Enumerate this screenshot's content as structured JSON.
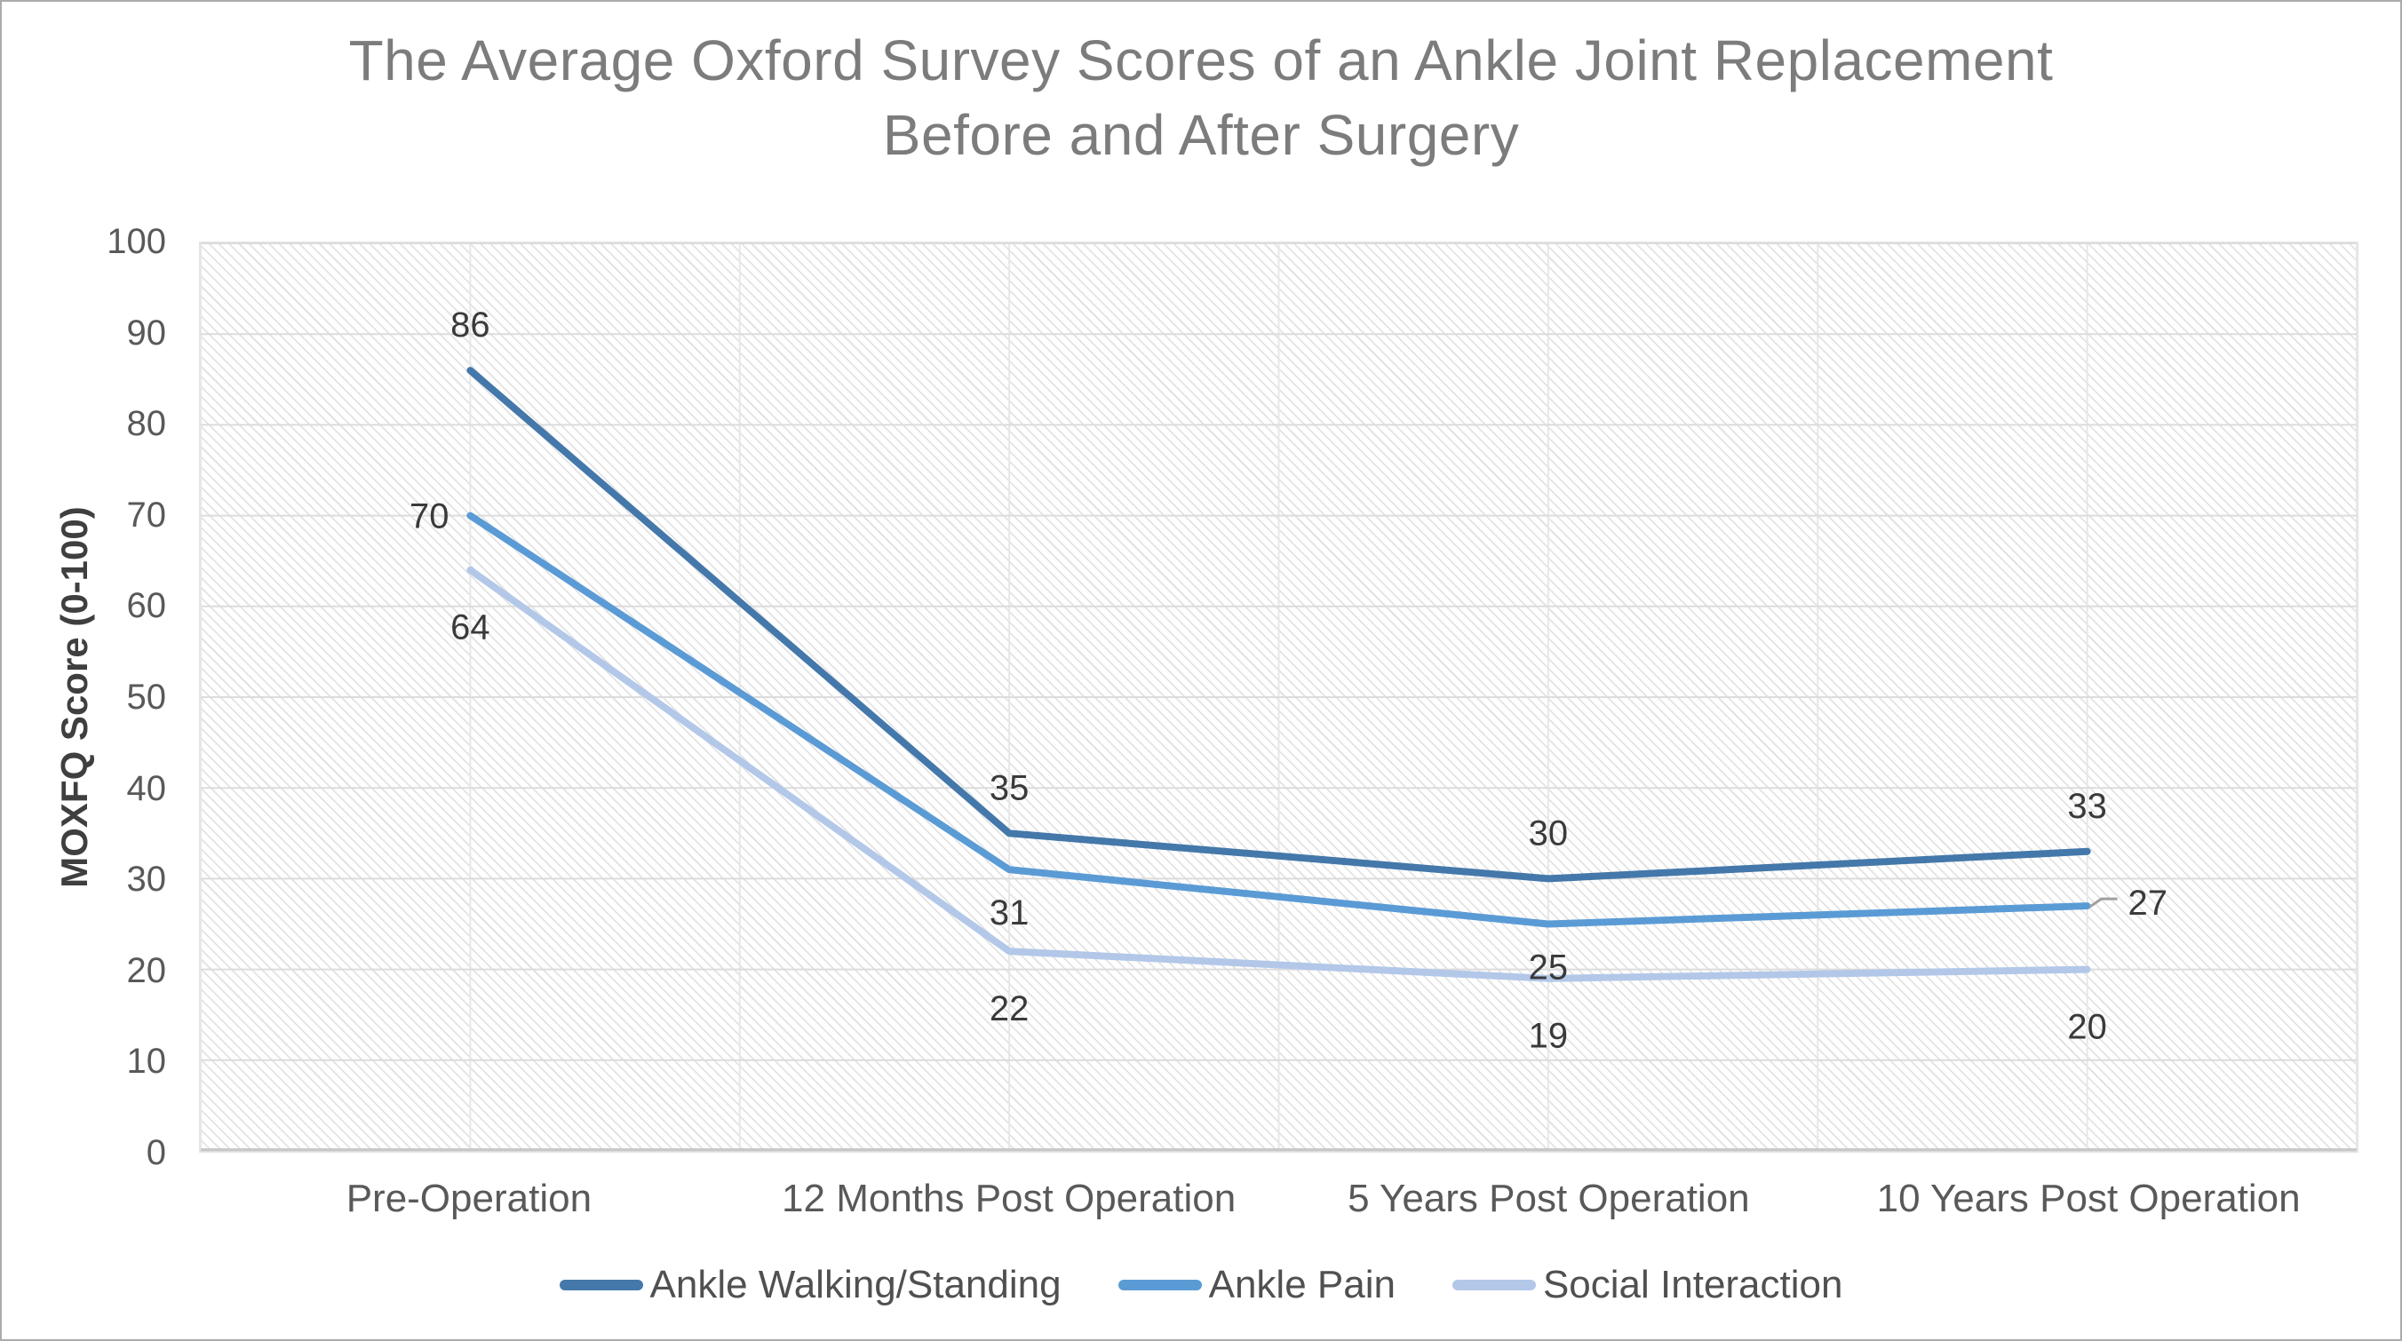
{
  "title": {
    "line1": "The Average Oxford Survey Scores of an Ankle Joint Replacement",
    "line2": "Before and After Surgery"
  },
  "y_axis": {
    "title": "MOXFQ Score (0-100)",
    "ticks": [
      100,
      90,
      80,
      70,
      60,
      50,
      40,
      30,
      20,
      10,
      0
    ]
  },
  "x_axis": {
    "categories": [
      "Pre-Operation",
      "12 Months Post Operation",
      "5 Years Post Operation",
      "10 Years Post Operation"
    ]
  },
  "colors": {
    "series_dark_blue": "#4478aa",
    "series_medium_blue": "#5b9bd5",
    "series_light_blue": "#b3c8e8",
    "gridline": "#dcdcdc",
    "gridline_vertical": "#e7e7e7",
    "axis_line": "#c8c8c8",
    "title_text": "#7c7c7c",
    "tick_text": "#595959",
    "data_label_text": "#3a3a3a",
    "leader_line": "#9f9f9f"
  },
  "chart_data": {
    "type": "line",
    "title": "The Average Oxford Survey Scores of an Ankle Joint Replacement Before and After Surgery",
    "xlabel": "",
    "ylabel": "MOXFQ Score (0-100)",
    "ylim": [
      0,
      100
    ],
    "ytick_step": 10,
    "grid": true,
    "plot_background": "diagonal-hatch",
    "legend_position": "bottom",
    "categories": [
      "Pre-Operation",
      "12 Months Post Operation",
      "5 Years Post Operation",
      "10 Years Post Operation"
    ],
    "series": [
      {
        "name": "Ankle Walking/Standing",
        "color": "#4478aa",
        "values": [
          86,
          35,
          30,
          33
        ],
        "label_pos": [
          "above",
          "above",
          "above",
          "above"
        ]
      },
      {
        "name": "Ankle Pain",
        "color": "#5b9bd5",
        "values": [
          70,
          31,
          25,
          27
        ],
        "label_pos": [
          "left",
          "below",
          "below",
          "right-leader"
        ]
      },
      {
        "name": "Social Interaction",
        "color": "#b3c8e8",
        "values": [
          64,
          22,
          19,
          20
        ],
        "label_pos": [
          "below-far",
          "below-far",
          "below-far",
          "below-far"
        ]
      }
    ]
  }
}
